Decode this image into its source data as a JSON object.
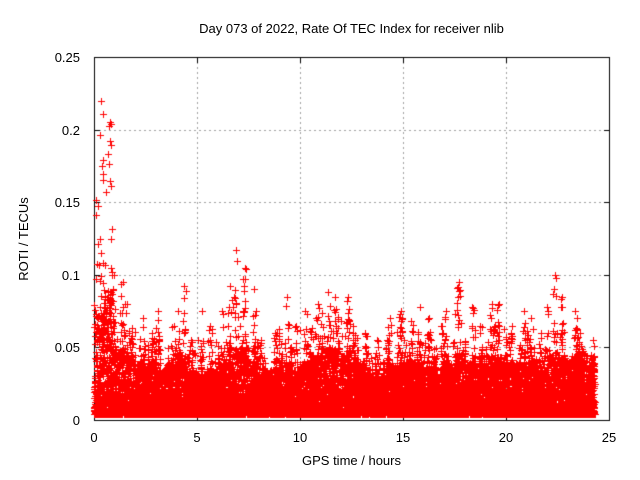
{
  "chart_data": {
    "type": "scatter",
    "title": "Day 073 of 2022, Rate Of TEC Index for receiver nlib",
    "xlabel": "GPS time / hours",
    "ylabel": "ROTI / TECUs",
    "xlim": [
      0,
      25
    ],
    "ylim": [
      0,
      0.25
    ],
    "xticks": [
      0,
      5,
      10,
      15,
      20,
      25
    ],
    "xtick_labels": [
      "0",
      "5",
      "10",
      "15",
      "20",
      "25"
    ],
    "yticks": [
      0,
      0.05,
      0.1,
      0.15,
      0.2,
      0.25
    ],
    "ytick_labels": [
      "0",
      "0.05",
      "0.1",
      "0.15",
      "0.2",
      "0.25"
    ],
    "grid": true,
    "grid_style": "dotted",
    "grid_color": "#a0a0a0",
    "legend_position": "none",
    "marker": "plus",
    "marker_color": "#ff0000",
    "marker_size_px": 7,
    "axis_color": "#000000",
    "series_name": "ROTI",
    "data_start_hour": 0.0,
    "data_end_hour": 24.3,
    "baseline_min": 0.004,
    "points_per_half_hour": 300,
    "tail_fraction": 0.11,
    "envelope_per_half_hour": [
      [
        0.0,
        0.5,
        0.075,
        0.22
      ],
      [
        0.5,
        1.0,
        0.09,
        0.205
      ],
      [
        1.0,
        1.5,
        0.05,
        0.095
      ],
      [
        1.5,
        2.0,
        0.045,
        0.08
      ],
      [
        2.0,
        2.5,
        0.04,
        0.07
      ],
      [
        2.5,
        3.0,
        0.04,
        0.06
      ],
      [
        3.0,
        3.5,
        0.035,
        0.075
      ],
      [
        3.5,
        4.0,
        0.04,
        0.065
      ],
      [
        4.0,
        4.5,
        0.045,
        0.092
      ],
      [
        4.5,
        5.0,
        0.035,
        0.055
      ],
      [
        5.0,
        5.5,
        0.032,
        0.075
      ],
      [
        5.5,
        6.0,
        0.035,
        0.065
      ],
      [
        6.0,
        6.5,
        0.04,
        0.075
      ],
      [
        6.5,
        7.0,
        0.05,
        0.117
      ],
      [
        7.0,
        7.5,
        0.05,
        0.105
      ],
      [
        7.5,
        8.0,
        0.04,
        0.09
      ],
      [
        8.0,
        8.5,
        0.035,
        0.055
      ],
      [
        8.5,
        9.0,
        0.035,
        0.06
      ],
      [
        9.0,
        9.5,
        0.04,
        0.085
      ],
      [
        9.5,
        10.0,
        0.035,
        0.065
      ],
      [
        10.0,
        10.5,
        0.04,
        0.075
      ],
      [
        10.5,
        11.0,
        0.045,
        0.08
      ],
      [
        11.0,
        11.5,
        0.05,
        0.088
      ],
      [
        11.5,
        12.0,
        0.05,
        0.085
      ],
      [
        12.0,
        12.5,
        0.045,
        0.085
      ],
      [
        12.5,
        13.0,
        0.04,
        0.065
      ],
      [
        13.0,
        13.5,
        0.035,
        0.06
      ],
      [
        13.5,
        14.0,
        0.03,
        0.055
      ],
      [
        14.0,
        14.5,
        0.04,
        0.07
      ],
      [
        14.5,
        15.0,
        0.04,
        0.075
      ],
      [
        15.0,
        15.5,
        0.04,
        0.068
      ],
      [
        15.5,
        16.0,
        0.04,
        0.078
      ],
      [
        16.0,
        16.5,
        0.04,
        0.07
      ],
      [
        16.5,
        17.0,
        0.035,
        0.065
      ],
      [
        17.0,
        17.5,
        0.04,
        0.075
      ],
      [
        17.5,
        18.0,
        0.045,
        0.095
      ],
      [
        18.0,
        18.5,
        0.04,
        0.078
      ],
      [
        18.5,
        19.0,
        0.04,
        0.065
      ],
      [
        19.0,
        19.5,
        0.045,
        0.08
      ],
      [
        19.5,
        20.0,
        0.045,
        0.08
      ],
      [
        20.0,
        20.5,
        0.04,
        0.065
      ],
      [
        20.5,
        21.0,
        0.04,
        0.075
      ],
      [
        21.0,
        21.5,
        0.04,
        0.07
      ],
      [
        21.5,
        22.0,
        0.035,
        0.06
      ],
      [
        22.0,
        22.5,
        0.045,
        0.1
      ],
      [
        22.5,
        23.0,
        0.045,
        0.085
      ],
      [
        23.0,
        23.5,
        0.045,
        0.075
      ],
      [
        23.5,
        24.0,
        0.045,
        0.06
      ],
      [
        24.0,
        24.3,
        0.04,
        0.055
      ]
    ]
  }
}
